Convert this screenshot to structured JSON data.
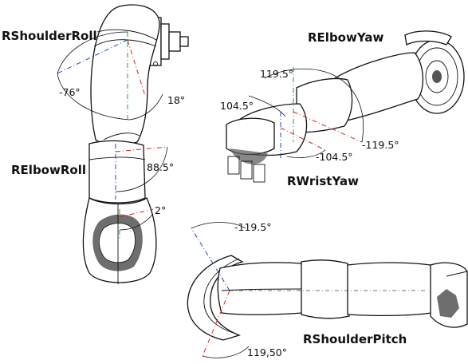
{
  "joints": {
    "shoulder_roll": {
      "name": "RShoulderRoll",
      "min": "-76°",
      "max": "18°"
    },
    "elbow_yaw": {
      "name": "RElbowYaw",
      "min": "-119.5°",
      "max": "119.5°"
    },
    "wrist_yaw": {
      "name": "RWristYaw",
      "min": "-104.5°",
      "max": "104.5°"
    },
    "elbow_roll": {
      "name": "RElbowRoll",
      "min": "2°",
      "max": "88.5°"
    },
    "shoulder_pitch": {
      "name": "RShoulderPitch",
      "min": "-119.5°",
      "max": "119,50°"
    }
  },
  "colors": {
    "axis_red": "#dd2222",
    "axis_blue": "#2244cc",
    "axis_green": "#11aa22",
    "outline": "#111111"
  }
}
